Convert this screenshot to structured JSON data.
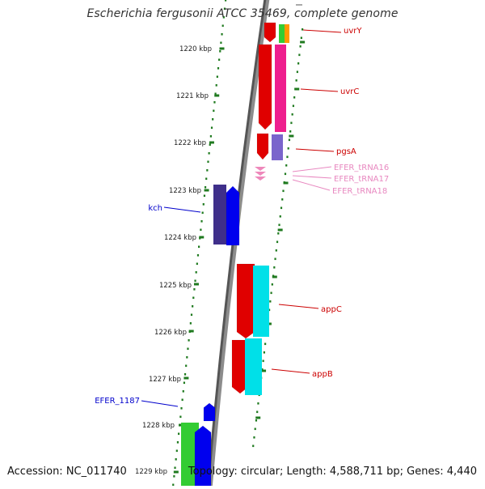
{
  "title": "Escherichia fergusonii ATCC 35469, complete genome",
  "accession": "Accession: NC_011740",
  "topology": "Topology: circular; Length: 4,588,711 bp; Genes: 4,440",
  "colors": {
    "backbone": "#8c8c8c",
    "tick": "#1f7a1f",
    "label_red": "#cc0000",
    "label_blue": "#0000cc",
    "label_pink": "#e888c0"
  },
  "scale_labels": [
    "1220 kbp",
    "1221 kbp",
    "1222 kbp",
    "1223 kbp",
    "1224 kbp",
    "1225 kbp",
    "1226 kbp",
    "1227 kbp",
    "1228 kbp",
    "1229 kbp"
  ],
  "gene_labels": [
    {
      "text": "uvrY",
      "color": "#cc0000"
    },
    {
      "text": "uvrC",
      "color": "#cc0000"
    },
    {
      "text": "pgsA",
      "color": "#cc0000"
    },
    {
      "text": "EFER_tRNA16",
      "color": "#e888c0"
    },
    {
      "text": "EFER_tRNA17",
      "color": "#e888c0"
    },
    {
      "text": "EFER_tRNA18",
      "color": "#e888c0"
    },
    {
      "text": "kch",
      "color": "#0000cc"
    },
    {
      "text": "appC",
      "color": "#cc0000"
    },
    {
      "text": "appB",
      "color": "#cc0000"
    },
    {
      "text": "EFER_1187",
      "color": "#0000cc"
    }
  ]
}
